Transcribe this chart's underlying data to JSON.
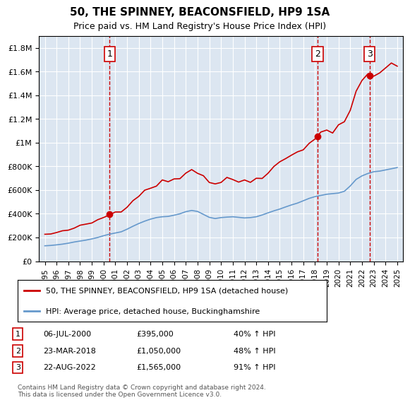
{
  "title": "50, THE SPINNEY, BEACONSFIELD, HP9 1SA",
  "subtitle": "Price paid vs. HM Land Registry's House Price Index (HPI)",
  "fig_width": 6.0,
  "fig_height": 5.9,
  "bg_color": "#dce6f1",
  "plot_bg_color": "#dce6f1",
  "legend_entries": [
    "50, THE SPINNEY, BEACONSFIELD, HP9 1SA (detached house)",
    "HPI: Average price, detached house, Buckinghamshire"
  ],
  "table_rows": [
    [
      "1",
      "06-JUL-2000",
      "£395,000",
      "40% ↑ HPI"
    ],
    [
      "2",
      "23-MAR-2018",
      "£1,050,000",
      "48% ↑ HPI"
    ],
    [
      "3",
      "22-AUG-2022",
      "£1,565,000",
      "91% ↑ HPI"
    ]
  ],
  "footer": "Contains HM Land Registry data © Crown copyright and database right 2024.\nThis data is licensed under the Open Government Licence v3.0.",
  "sale_dates": [
    2000.51,
    2018.22,
    2022.64
  ],
  "sale_prices": [
    395000,
    1050000,
    1565000
  ],
  "sale_labels": [
    "1",
    "2",
    "3"
  ],
  "vline_color": "#cc0000",
  "sale_marker_color": "#cc0000",
  "hpi_line_color": "#6699cc",
  "price_line_color": "#cc0000",
  "ylim": [
    0,
    1900000
  ],
  "xlim": [
    1994.5,
    2025.5
  ]
}
